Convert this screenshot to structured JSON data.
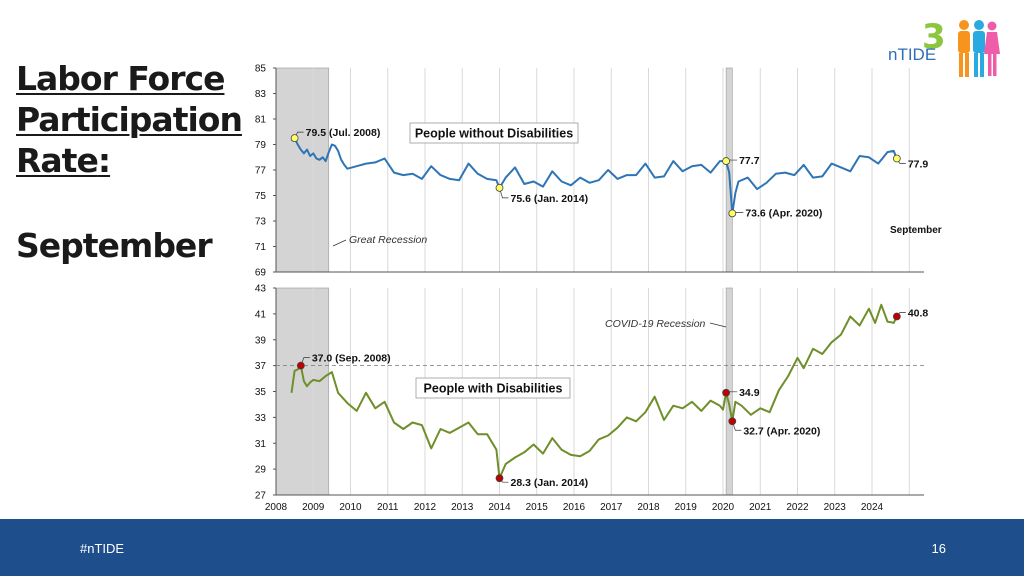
{
  "slide": {
    "title_lines": [
      "Labor Force",
      "Participation",
      "Rate"
    ],
    "title_colon": ":",
    "subtitle": "September",
    "footer_tag": "#nTIDE",
    "page_number": "16",
    "logo_text": "nTIDE",
    "logo_digit": "3"
  },
  "colors": {
    "without_line": "#2e75b6",
    "with_line": "#6f8f2a",
    "recession_shade": "#d4d4d4",
    "marker_yellow": "#ffff66",
    "marker_red": "#c00000",
    "footer": "#1f4e8c"
  },
  "chart_data": [
    {
      "type": "line",
      "title": "People without Disabilities",
      "ylim": [
        69,
        85
      ],
      "yticks": [
        "69",
        "71",
        "73",
        "75",
        "77",
        "79",
        "81",
        "83",
        "85"
      ],
      "grid": "vertical gridlines at each year",
      "legend": "none",
      "series": [
        {
          "name": "People without Disabilities",
          "points": [
            [
              "2008-06",
              79.3
            ],
            [
              "2008-07",
              79.5
            ],
            [
              "2008-08",
              79.0
            ],
            [
              "2008-09",
              78.6
            ],
            [
              "2008-10",
              78.3
            ],
            [
              "2008-11",
              78.6
            ],
            [
              "2008-12",
              78.1
            ],
            [
              "2009-01",
              78.3
            ],
            [
              "2009-02",
              77.9
            ],
            [
              "2009-03",
              77.8
            ],
            [
              "2009-04",
              78.0
            ],
            [
              "2009-05",
              77.7
            ],
            [
              "2009-06",
              78.4
            ],
            [
              "2009-07",
              79.0
            ],
            [
              "2009-08",
              78.9
            ],
            [
              "2009-09",
              78.5
            ],
            [
              "2009-10",
              77.8
            ],
            [
              "2009-11",
              77.4
            ],
            [
              "2009-12",
              77.1
            ],
            [
              "2010-03",
              77.3
            ],
            [
              "2010-06",
              77.5
            ],
            [
              "2010-09",
              77.6
            ],
            [
              "2010-12",
              77.9
            ],
            [
              "2011-03",
              76.8
            ],
            [
              "2011-06",
              76.6
            ],
            [
              "2011-09",
              76.7
            ],
            [
              "2011-12",
              76.3
            ],
            [
              "2012-03",
              77.3
            ],
            [
              "2012-06",
              76.6
            ],
            [
              "2012-09",
              76.3
            ],
            [
              "2012-12",
              76.2
            ],
            [
              "2013-03",
              77.5
            ],
            [
              "2013-06",
              76.7
            ],
            [
              "2013-09",
              76.3
            ],
            [
              "2013-12",
              76.2
            ],
            [
              "2014-01",
              75.6
            ],
            [
              "2014-03",
              76.4
            ],
            [
              "2014-06",
              77.2
            ],
            [
              "2014-09",
              75.9
            ],
            [
              "2014-12",
              76.1
            ],
            [
              "2015-03",
              75.7
            ],
            [
              "2015-06",
              76.9
            ],
            [
              "2015-09",
              76.1
            ],
            [
              "2015-12",
              75.8
            ],
            [
              "2016-03",
              76.4
            ],
            [
              "2016-06",
              76.0
            ],
            [
              "2016-09",
              76.2
            ],
            [
              "2016-12",
              77.0
            ],
            [
              "2017-03",
              76.3
            ],
            [
              "2017-06",
              76.6
            ],
            [
              "2017-09",
              76.6
            ],
            [
              "2017-12",
              77.5
            ],
            [
              "2018-03",
              76.4
            ],
            [
              "2018-06",
              76.5
            ],
            [
              "2018-09",
              77.7
            ],
            [
              "2018-12",
              76.9
            ],
            [
              "2019-03",
              77.3
            ],
            [
              "2019-06",
              77.4
            ],
            [
              "2019-09",
              76.8
            ],
            [
              "2019-12",
              77.7
            ],
            [
              "2020-02",
              77.7
            ],
            [
              "2020-03",
              76.8
            ],
            [
              "2020-04",
              73.6
            ],
            [
              "2020-05",
              75.2
            ],
            [
              "2020-06",
              76.1
            ],
            [
              "2020-09",
              76.4
            ],
            [
              "2020-12",
              75.5
            ],
            [
              "2021-03",
              76.0
            ],
            [
              "2021-06",
              76.7
            ],
            [
              "2021-09",
              76.8
            ],
            [
              "2021-12",
              76.6
            ],
            [
              "2022-03",
              77.4
            ],
            [
              "2022-06",
              76.4
            ],
            [
              "2022-09",
              76.5
            ],
            [
              "2022-12",
              77.5
            ],
            [
              "2023-03",
              77.2
            ],
            [
              "2023-06",
              76.9
            ],
            [
              "2023-09",
              78.1
            ],
            [
              "2023-12",
              78.0
            ],
            [
              "2024-03",
              77.5
            ],
            [
              "2024-06",
              78.4
            ],
            [
              "2024-08",
              78.5
            ],
            [
              "2024-09",
              77.9
            ]
          ]
        }
      ],
      "annotations": [
        {
          "text": "79.5 (Jul. 2008)",
          "x": "2008-07",
          "y": 79.5,
          "marker": "yellow"
        },
        {
          "text": "75.6 (Jan. 2014)",
          "x": "2014-01",
          "y": 75.6,
          "marker": "yellow"
        },
        {
          "text": "77.7",
          "x": "2020-02",
          "y": 77.7,
          "marker": "yellow"
        },
        {
          "text": "73.6 (Apr. 2020)",
          "x": "2020-04",
          "y": 73.6,
          "marker": "yellow"
        },
        {
          "text": "77.9",
          "x": "2024-09",
          "y": 77.9,
          "marker": "yellow"
        },
        {
          "text": "Great Recession",
          "style": "italic"
        },
        {
          "text": "September",
          "style": "bold"
        }
      ]
    },
    {
      "type": "line",
      "title": "People with Disabilities",
      "ylim": [
        27,
        43
      ],
      "yticks": [
        "27",
        "29",
        "31",
        "33",
        "35",
        "37",
        "39",
        "41",
        "43"
      ],
      "xticks": [
        "2008",
        "2009",
        "2010",
        "2011",
        "2012",
        "2013",
        "2014",
        "2015",
        "2016",
        "2017",
        "2018",
        "2019",
        "2020",
        "2021",
        "2022",
        "2023",
        "2024"
      ],
      "reference_line": 37.0,
      "grid": "vertical gridlines at each year",
      "legend": "none",
      "series": [
        {
          "name": "People with Disabilities",
          "points": [
            [
              "2008-06",
              34.9
            ],
            [
              "2008-07",
              36.6
            ],
            [
              "2008-08",
              36.7
            ],
            [
              "2008-09",
              37.0
            ],
            [
              "2008-10",
              35.8
            ],
            [
              "2008-11",
              35.4
            ],
            [
              "2008-12",
              35.7
            ],
            [
              "2009-01",
              35.9
            ],
            [
              "2009-03",
              35.8
            ],
            [
              "2009-05",
              36.2
            ],
            [
              "2009-07",
              36.5
            ],
            [
              "2009-09",
              34.9
            ],
            [
              "2009-12",
              34.1
            ],
            [
              "2010-03",
              33.5
            ],
            [
              "2010-06",
              34.9
            ],
            [
              "2010-09",
              33.7
            ],
            [
              "2010-12",
              34.2
            ],
            [
              "2011-03",
              32.6
            ],
            [
              "2011-06",
              32.1
            ],
            [
              "2011-09",
              32.6
            ],
            [
              "2011-12",
              32.4
            ],
            [
              "2012-03",
              30.6
            ],
            [
              "2012-06",
              32.1
            ],
            [
              "2012-09",
              31.8
            ],
            [
              "2012-12",
              32.2
            ],
            [
              "2013-03",
              32.6
            ],
            [
              "2013-06",
              31.7
            ],
            [
              "2013-09",
              31.7
            ],
            [
              "2013-12",
              30.5
            ],
            [
              "2014-01",
              28.3
            ],
            [
              "2014-03",
              29.4
            ],
            [
              "2014-06",
              29.9
            ],
            [
              "2014-09",
              30.3
            ],
            [
              "2014-12",
              30.9
            ],
            [
              "2015-03",
              30.2
            ],
            [
              "2015-06",
              31.4
            ],
            [
              "2015-09",
              30.5
            ],
            [
              "2015-12",
              30.1
            ],
            [
              "2016-03",
              30.0
            ],
            [
              "2016-06",
              30.4
            ],
            [
              "2016-09",
              31.3
            ],
            [
              "2016-12",
              31.6
            ],
            [
              "2017-03",
              32.2
            ],
            [
              "2017-06",
              33.0
            ],
            [
              "2017-09",
              32.7
            ],
            [
              "2017-12",
              33.4
            ],
            [
              "2018-03",
              34.6
            ],
            [
              "2018-06",
              32.8
            ],
            [
              "2018-09",
              33.9
            ],
            [
              "2018-12",
              33.7
            ],
            [
              "2019-03",
              34.2
            ],
            [
              "2019-06",
              33.5
            ],
            [
              "2019-09",
              34.3
            ],
            [
              "2019-12",
              33.9
            ],
            [
              "2020-01",
              33.6
            ],
            [
              "2020-02",
              34.9
            ],
            [
              "2020-03",
              34.0
            ],
            [
              "2020-04",
              32.7
            ],
            [
              "2020-05",
              34.2
            ],
            [
              "2020-07",
              33.9
            ],
            [
              "2020-10",
              33.2
            ],
            [
              "2021-01",
              33.7
            ],
            [
              "2021-04",
              33.4
            ],
            [
              "2021-07",
              35.1
            ],
            [
              "2021-10",
              36.2
            ],
            [
              "2022-01",
              37.6
            ],
            [
              "2022-03",
              36.8
            ],
            [
              "2022-06",
              38.3
            ],
            [
              "2022-09",
              37.9
            ],
            [
              "2022-12",
              38.8
            ],
            [
              "2023-03",
              39.4
            ],
            [
              "2023-06",
              40.8
            ],
            [
              "2023-09",
              40.1
            ],
            [
              "2023-12",
              41.4
            ],
            [
              "2024-02",
              40.3
            ],
            [
              "2024-04",
              41.7
            ],
            [
              "2024-06",
              40.4
            ],
            [
              "2024-08",
              40.3
            ],
            [
              "2024-09",
              40.8
            ]
          ]
        }
      ],
      "annotations": [
        {
          "text": "37.0 (Sep. 2008)",
          "x": "2008-09",
          "y": 37.0,
          "marker": "red"
        },
        {
          "text": "28.3 (Jan. 2014)",
          "x": "2014-01",
          "y": 28.3,
          "marker": "red"
        },
        {
          "text": "34.9",
          "x": "2020-02",
          "y": 34.9,
          "marker": "red"
        },
        {
          "text": "32.7 (Apr. 2020)",
          "x": "2020-04",
          "y": 32.7,
          "marker": "red"
        },
        {
          "text": "40.8",
          "x": "2024-09",
          "y": 40.8,
          "marker": "red"
        },
        {
          "text": "COVID-19 Recession",
          "style": "italic"
        }
      ]
    }
  ],
  "recessions": [
    {
      "start": "2007-12",
      "end": "2009-06"
    },
    {
      "start": "2020-02",
      "end": "2020-04"
    }
  ]
}
